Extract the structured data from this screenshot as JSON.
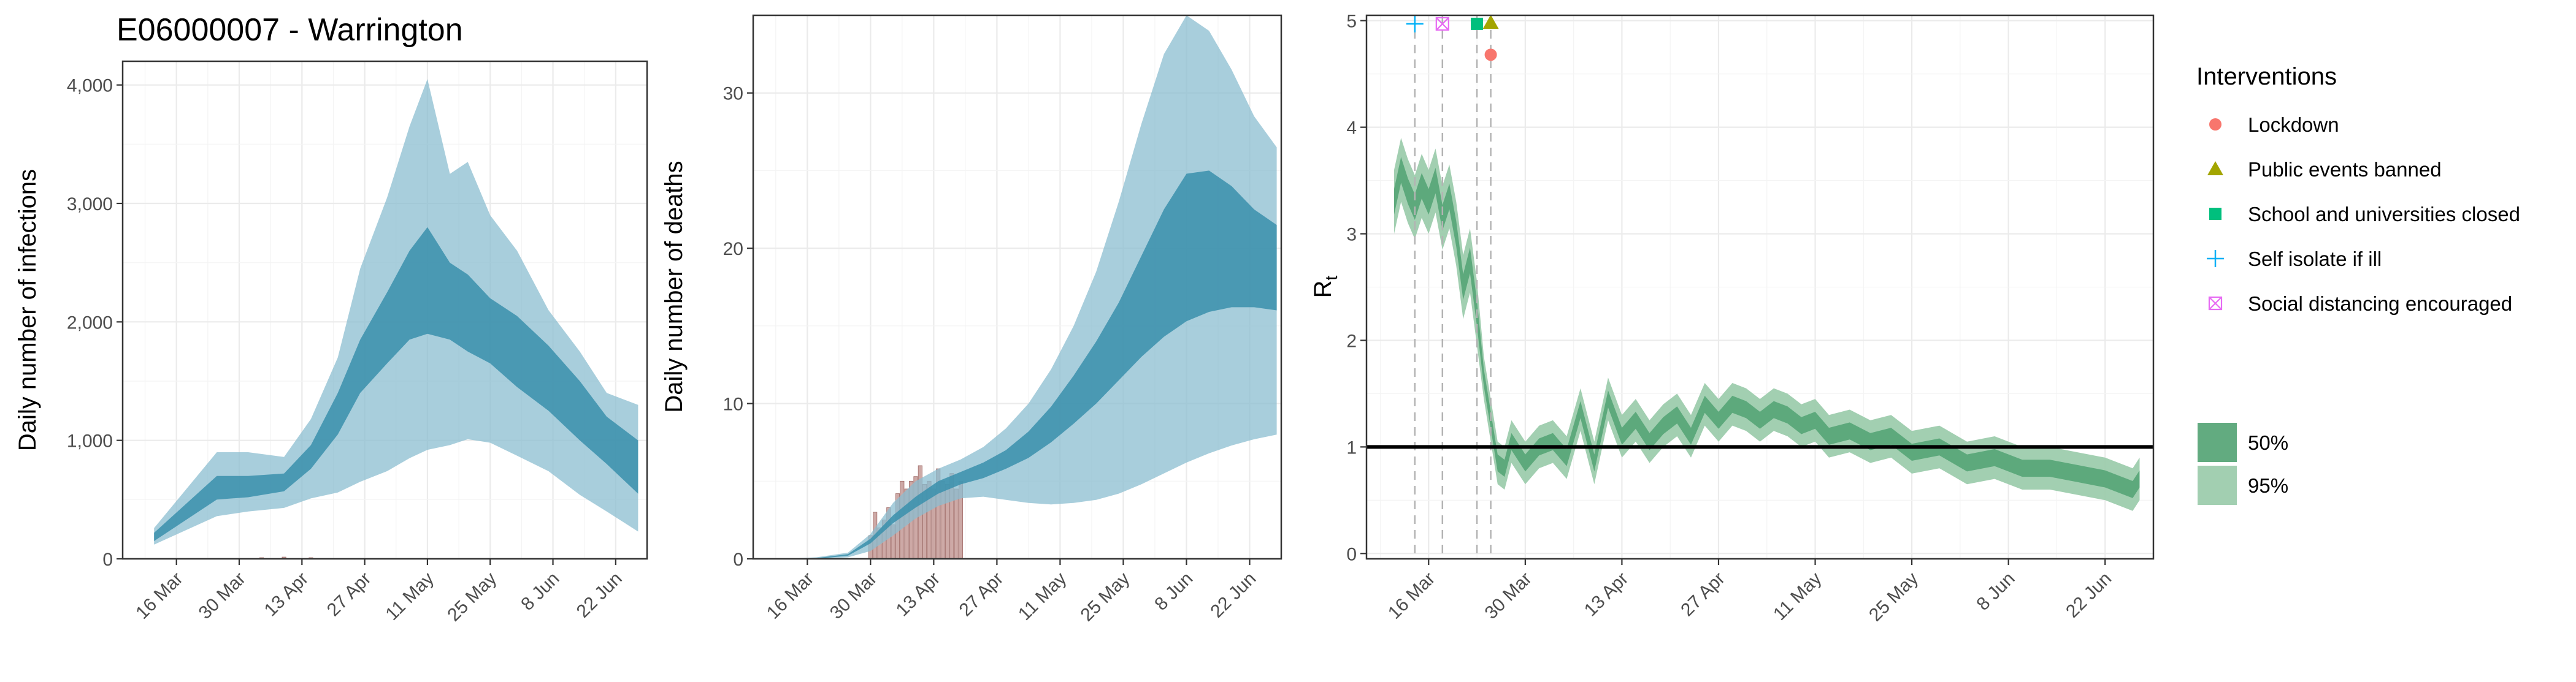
{
  "title": "E06000007 - Warrington",
  "colors": {
    "band95_blue": "#8bbdd0",
    "band50_blue": "#3a8fab",
    "death_bar": "#c49a96",
    "band95_green": "#9dccad",
    "band50_green": "#5aa779",
    "lockdown": "#f8766d",
    "public_events": "#a3a500",
    "schools": "#00bf7d",
    "self_isolate": "#00b0f6",
    "social_distancing": "#e76bf3"
  },
  "chart_data": [
    {
      "type": "area",
      "ylabel": "Daily number of infections",
      "xlabel": "",
      "x_ticks": [
        "16 Mar",
        "30 Mar",
        "13 Apr",
        "27 Apr",
        "11 May",
        "25 May",
        "8 Jun",
        "22 Jun"
      ],
      "x_tick_days": [
        14,
        28,
        42,
        56,
        70,
        84,
        98,
        112
      ],
      "y_ticks": [
        "0",
        "1,000",
        "2,000",
        "3,000",
        "4,000"
      ],
      "y_tick_values": [
        0,
        1000,
        2000,
        3000,
        4000
      ],
      "xlim": [
        2,
        119
      ],
      "ylim": [
        0,
        4200
      ],
      "band_days": [
        9,
        23,
        30,
        38,
        44,
        50,
        55,
        61,
        66,
        70,
        75,
        79,
        84,
        90,
        97,
        104,
        110,
        117
      ],
      "ci95_low": [
        120,
        360,
        400,
        430,
        510,
        560,
        650,
        740,
        850,
        920,
        960,
        1010,
        980,
        870,
        740,
        540,
        400,
        230
      ],
      "ci95_high": [
        260,
        900,
        900,
        860,
        1180,
        1700,
        2450,
        3050,
        3650,
        4050,
        3250,
        3350,
        2900,
        2600,
        2100,
        1750,
        1400,
        1300
      ],
      "ci50_low": [
        150,
        500,
        520,
        570,
        760,
        1050,
        1400,
        1650,
        1850,
        1900,
        1850,
        1750,
        1650,
        1450,
        1250,
        1000,
        800,
        550
      ],
      "ci50_high": [
        220,
        700,
        700,
        720,
        960,
        1400,
        1850,
        2250,
        2600,
        2800,
        2500,
        2400,
        2200,
        2050,
        1800,
        1500,
        1200,
        1000
      ],
      "bars_days": [
        33,
        38,
        44
      ],
      "bars_values": [
        10,
        15,
        10
      ]
    },
    {
      "type": "area",
      "ylabel": "Daily number of deaths",
      "xlabel": "",
      "x_ticks": [
        "16 Mar",
        "30 Mar",
        "13 Apr",
        "27 Apr",
        "11 May",
        "25 May",
        "8 Jun",
        "22 Jun"
      ],
      "x_tick_days": [
        14,
        28,
        42,
        56,
        70,
        84,
        98,
        112
      ],
      "y_ticks": [
        "0",
        "10",
        "20",
        "30"
      ],
      "y_tick_values": [
        0,
        10,
        20,
        30
      ],
      "xlim": [
        2,
        119
      ],
      "ylim": [
        0,
        35
      ],
      "band_days": [
        9,
        16,
        23,
        28,
        33,
        38,
        43,
        48,
        53,
        58,
        63,
        68,
        73,
        78,
        83,
        88,
        93,
        98,
        103,
        108,
        113,
        118
      ],
      "ci95_low": [
        0,
        0,
        0.1,
        0.5,
        1.5,
        2.6,
        3.4,
        3.9,
        4.0,
        3.8,
        3.6,
        3.5,
        3.6,
        3.8,
        4.2,
        4.8,
        5.5,
        6.2,
        6.8,
        7.3,
        7.7,
        8.0
      ],
      "ci95_high": [
        0,
        0.1,
        0.4,
        1.6,
        3.6,
        5.0,
        5.8,
        6.4,
        7.2,
        8.4,
        10.0,
        12.2,
        15.0,
        18.5,
        23.0,
        28.0,
        32.5,
        35.0,
        34.0,
        31.5,
        28.5,
        26.5
      ],
      "ci50_low": [
        0,
        0,
        0.2,
        1.0,
        2.3,
        3.3,
        4.2,
        4.8,
        5.2,
        5.8,
        6.5,
        7.5,
        8.7,
        10.0,
        11.5,
        13.0,
        14.3,
        15.3,
        15.9,
        16.2,
        16.2,
        16.0
      ],
      "ci50_high": [
        0,
        0.05,
        0.3,
        1.3,
        2.8,
        4.0,
        5.0,
        5.6,
        6.2,
        7.0,
        8.2,
        9.8,
        11.8,
        14.0,
        16.5,
        19.5,
        22.5,
        24.8,
        25.0,
        24.0,
        22.5,
        21.5
      ],
      "bars_days": [
        28,
        29,
        30,
        31,
        32,
        33,
        34,
        35,
        36,
        37,
        38,
        39,
        40,
        41,
        42,
        43,
        44,
        45,
        46,
        47,
        48
      ],
      "bars_values": [
        1.5,
        3,
        2,
        2.5,
        3.3,
        2.2,
        4.2,
        5,
        4.5,
        5,
        5.3,
        6,
        4.8,
        5,
        4.5,
        5.8,
        5,
        4.8,
        5.5,
        4.5,
        5
      ]
    },
    {
      "type": "line",
      "ylabel": "Rt",
      "xlabel": "",
      "x_ticks": [
        "16 Mar",
        "30 Mar",
        "13 Apr",
        "27 Apr",
        "11 May",
        "25 May",
        "8 Jun",
        "22 Jun"
      ],
      "x_tick_days": [
        14,
        28,
        42,
        56,
        70,
        84,
        98,
        112
      ],
      "y_ticks": [
        "0",
        "1",
        "2",
        "3",
        "4",
        "5"
      ],
      "y_tick_values": [
        0,
        1,
        2,
        3,
        4,
        5
      ],
      "xlim": [
        5,
        119
      ],
      "ylim": [
        -0.05,
        5.05
      ],
      "reference_line": 1,
      "rt_days": [
        9,
        10,
        11,
        12,
        13,
        14,
        15,
        16,
        17,
        18,
        19,
        20,
        21,
        22,
        23,
        24,
        25,
        26,
        27,
        28,
        30,
        32,
        34,
        36,
        38,
        40,
        42,
        44,
        46,
        48,
        50,
        52,
        54,
        56,
        58,
        60,
        62,
        64,
        66,
        68,
        70,
        72,
        75,
        78,
        81,
        84,
        88,
        92,
        96,
        100,
        104,
        108,
        112,
        116,
        117
      ],
      "rt_median": [
        3.3,
        3.6,
        3.4,
        3.25,
        3.45,
        3.3,
        3.5,
        3.15,
        3.35,
        3.0,
        2.5,
        2.75,
        2.25,
        1.65,
        1.25,
        0.85,
        0.8,
        1.05,
        0.95,
        0.85,
        1.0,
        1.05,
        0.9,
        1.35,
        0.85,
        1.45,
        1.1,
        1.25,
        1.05,
        1.2,
        1.3,
        1.1,
        1.4,
        1.25,
        1.4,
        1.35,
        1.25,
        1.35,
        1.3,
        1.2,
        1.25,
        1.1,
        1.15,
        1.05,
        1.1,
        0.95,
        1.0,
        0.85,
        0.9,
        0.8,
        0.8,
        0.75,
        0.7,
        0.6,
        0.7
      ],
      "legend_title": "Interventions",
      "interventions": [
        {
          "name": "Lockdown",
          "day": 23,
          "y": 4.68,
          "shape": "circle",
          "color_key": "lockdown"
        },
        {
          "name": "Public events banned",
          "day": 23,
          "y": 4.98,
          "shape": "triangle",
          "color_key": "public_events"
        },
        {
          "name": "School and universities closed",
          "day": 21,
          "y": 4.97,
          "shape": "square",
          "color_key": "schools"
        },
        {
          "name": "Self isolate if ill",
          "day": 12,
          "y": 4.97,
          "shape": "plus",
          "color_key": "self_isolate"
        },
        {
          "name": "Social distancing encouraged",
          "day": 16,
          "y": 4.97,
          "shape": "boxcross",
          "color_key": "social_distancing"
        }
      ],
      "ci_legend": [
        "50%",
        "95%"
      ]
    }
  ]
}
